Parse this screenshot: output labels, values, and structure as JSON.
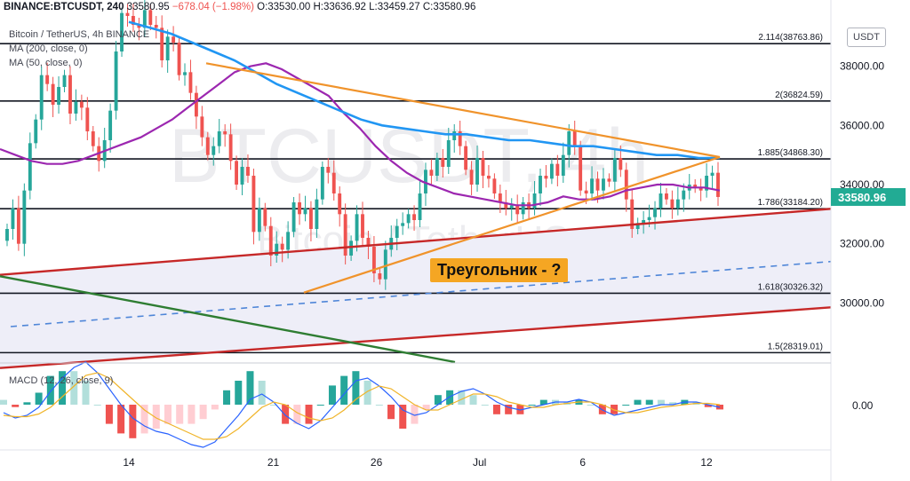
{
  "header": {
    "symbol": "BINANCE:BTCUSDT, 240",
    "last": "33580.95",
    "change": "−678.04 (−1.98%)",
    "o": "O:33530.00",
    "h": "H:33636.92",
    "l": "L:33459.27",
    "c": "C:33580.96"
  },
  "legend": {
    "title": "Bitcoin / TetherUS, 4h BINANCE",
    "ma200": "MA (200, close, 0)",
    "ma50": "MA (50, close, 0)",
    "macd": "MACD (12, 26, close, 9)"
  },
  "watermark": {
    "big": "BTCUSDT, 4h",
    "small": "Bitcoin / TetherUS"
  },
  "currency_button": "USDT",
  "annotation": "Треугольник - ?",
  "price_label": "33580.96",
  "macd_zero_label": "0.00",
  "colors": {
    "up": "#26a69a",
    "down": "#ef5350",
    "ma200": "#2196f3",
    "ma50": "#9c27b0",
    "triangle": "#f0932b",
    "channel": "#c62828",
    "green_line": "#2e7d32",
    "price_tag": "#22ab94"
  },
  "chart_data": {
    "type": "candlestick",
    "y_ticks": [
      30000,
      32000,
      34000,
      36000,
      38000
    ],
    "y_tick_labels": [
      "30000.00",
      "32000.00",
      "34000.00",
      "36000.00",
      "38000.00"
    ],
    "ylim": [
      28000,
      39700
    ],
    "x_ticks": [
      {
        "label": "14",
        "day": 14.0
      },
      {
        "label": "21",
        "day": 21.0
      },
      {
        "label": "26",
        "day": 26.0
      },
      {
        "label": "Jul",
        "day": 31.0
      },
      {
        "label": "6",
        "day": 36.0
      },
      {
        "label": "12",
        "day": 42.0
      }
    ],
    "fib_levels": [
      {
        "label": "2.114(38763.86)",
        "value": 38763.86
      },
      {
        "label": "2(36824.59)",
        "value": 36824.59
      },
      {
        "label": "1.885(34868.30)",
        "value": 34868.3
      },
      {
        "label": "1.786(33184.20)",
        "value": 33184.2
      },
      {
        "label": "1.618(30326.32)",
        "value": 30326.32
      },
      {
        "label": "1.5(28319.01)",
        "value": 28319.01
      }
    ],
    "last_price": 33580.96,
    "close": [
      32500,
      33200,
      32000,
      33800,
      35400,
      36200,
      37700,
      37400,
      36700,
      37300,
      37700,
      36400,
      36800,
      36600,
      35800,
      35300,
      34800,
      35500,
      36500,
      38500,
      39800,
      39700,
      39400,
      39300,
      39900,
      39400,
      39300,
      38200,
      39000,
      38800,
      37700,
      37800,
      37100,
      36300,
      35600,
      35000,
      35300,
      35800,
      35700,
      34800,
      34000,
      34600,
      34300,
      32400,
      33200,
      32600,
      31600,
      32000,
      31800,
      32400,
      33400,
      33000,
      33200,
      32500,
      33500,
      34600,
      34400,
      33700,
      33000,
      31600,
      32100,
      33000,
      32200,
      31900,
      31000,
      30800,
      31800,
      32200,
      32600,
      32700,
      33000,
      32800,
      33700,
      34500,
      34300,
      34900,
      34600,
      35500,
      35800,
      35300,
      34500,
      34000,
      34900,
      34300,
      34200,
      33700,
      33400,
      33200,
      33300,
      33000,
      33400,
      33200,
      33700,
      34300,
      34200,
      34700,
      34300,
      35000,
      35800,
      35300,
      33800,
      33700,
      34200,
      33800,
      34200,
      34100,
      34900,
      34500,
      33500,
      32500,
      32700,
      32800,
      32900,
      33200,
      33700,
      33500,
      33200,
      33500,
      33800,
      34000,
      33900,
      33800,
      34300,
      34400,
      33581
    ],
    "ma50": [
      35200,
      35000,
      34800,
      34700,
      34700,
      34800,
      35000,
      35200,
      35400,
      35600,
      35900,
      36200,
      36600,
      37000,
      37400,
      37800,
      38000,
      38100,
      37900,
      37600,
      37300,
      37000,
      36400,
      35900,
      35300,
      34800,
      34400,
      34100,
      33900,
      33700,
      33600,
      33500,
      33400,
      33300,
      33300,
      33400,
      33600,
      33500,
      33500,
      33600,
      33800,
      33900,
      34000,
      34000,
      33900,
      33900,
      33800
    ],
    "ma200": [
      39500,
      39300,
      39100,
      38800,
      38500,
      38200,
      37800,
      37400,
      37100,
      36800,
      36500,
      36200,
      36000,
      35900,
      35800,
      35700,
      35700,
      35600,
      35500,
      35500,
      35400,
      35300,
      35300,
      35200,
      35100,
      35000,
      35000,
      34900,
      34900
    ],
    "macd_line": [
      -0.3,
      -0.5,
      -0.4,
      -0.1,
      0.5,
      1.0,
      1.4,
      1.6,
      1.2,
      0.6,
      0.0,
      -0.5,
      -0.8,
      -1.0,
      -1.1,
      -1.3,
      -1.5,
      -1.6,
      -1.4,
      -0.9,
      -0.4,
      0.2,
      0.4,
      0.1,
      -0.4,
      -0.7,
      -0.9,
      -0.6,
      -0.1,
      0.4,
      0.9,
      1.0,
      0.7,
      0.3,
      -0.2,
      -0.4,
      -0.3,
      0.0,
      0.3,
      0.5,
      0.6,
      0.4,
      0.1,
      -0.1,
      -0.2,
      -0.1,
      0.0,
      0.1,
      0.1,
      0.2,
      0.1,
      -0.2,
      -0.4,
      -0.3,
      -0.2,
      -0.1,
      0.0,
      0.0,
      0.1,
      0.1,
      0.0,
      -0.1
    ],
    "macd_signal": [
      -0.4,
      -0.45,
      -0.45,
      -0.35,
      -0.1,
      0.3,
      0.7,
      1.1,
      1.2,
      1.0,
      0.6,
      0.2,
      -0.2,
      -0.5,
      -0.7,
      -0.9,
      -1.1,
      -1.3,
      -1.3,
      -1.2,
      -0.9,
      -0.5,
      -0.1,
      0.1,
      0.0,
      -0.3,
      -0.5,
      -0.6,
      -0.5,
      -0.2,
      0.2,
      0.5,
      0.7,
      0.6,
      0.3,
      0.0,
      -0.2,
      -0.2,
      0.0,
      0.2,
      0.4,
      0.4,
      0.3,
      0.1,
      0.0,
      -0.1,
      -0.1,
      0.0,
      0.05,
      0.1,
      0.1,
      0.0,
      -0.2,
      -0.3,
      -0.3,
      -0.2,
      -0.1,
      -0.05,
      0.0,
      0.05,
      0.05,
      0.0
    ]
  }
}
